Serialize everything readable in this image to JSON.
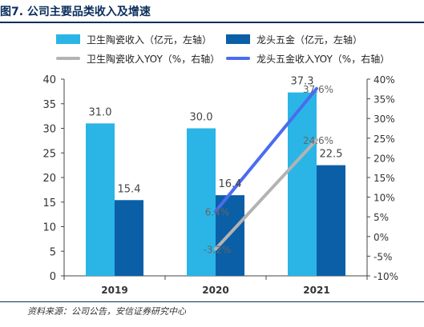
{
  "header": {
    "title": "图7. 公司主要品类收入及增速"
  },
  "footer": {
    "source": "资料来源：公司公告，安信证券研究中心"
  },
  "chart_data": {
    "type": "bar",
    "categories": [
      "2019",
      "2020",
      "2021"
    ],
    "series": [
      {
        "name": "卫生陶瓷收入（亿元，左轴）",
        "kind": "bar",
        "axis": "left",
        "color": "#2ab5e6",
        "values": [
          31.0,
          30.0,
          37.3
        ],
        "labels": [
          "31.0",
          "30.0",
          "37.3"
        ]
      },
      {
        "name": "龙头五金（亿元，左轴）",
        "kind": "bar",
        "axis": "left",
        "color": "#0a5fa6",
        "values": [
          15.4,
          16.4,
          22.5
        ],
        "labels": [
          "15.4",
          "16.4",
          "22.5"
        ]
      },
      {
        "name": "卫生陶瓷收入YOY（%，右轴）",
        "kind": "line",
        "axis": "right",
        "color": "#b3b3b3",
        "values": [
          null,
          -3.2,
          24.6
        ],
        "labels": [
          "",
          "-3.2%",
          "24.6%"
        ]
      },
      {
        "name": "龙头五金收入YOY（%，右轴）",
        "kind": "line",
        "axis": "right",
        "color": "#4a6cf0",
        "values": [
          null,
          6.4,
          37.6
        ],
        "labels": [
          "",
          "6.4%",
          "37.6%"
        ]
      }
    ],
    "y_left": {
      "ylim": [
        0,
        40
      ],
      "ticks": [
        "0",
        "5",
        "10",
        "15",
        "20",
        "25",
        "30",
        "35",
        "40"
      ]
    },
    "y_right": {
      "ylim": [
        -10,
        40
      ],
      "ticks": [
        "-10%",
        "-5%",
        "0%",
        "5%",
        "10%",
        "15%",
        "20%",
        "25%",
        "30%",
        "35%",
        "40%"
      ]
    },
    "legend_position": "top",
    "grid": false
  }
}
